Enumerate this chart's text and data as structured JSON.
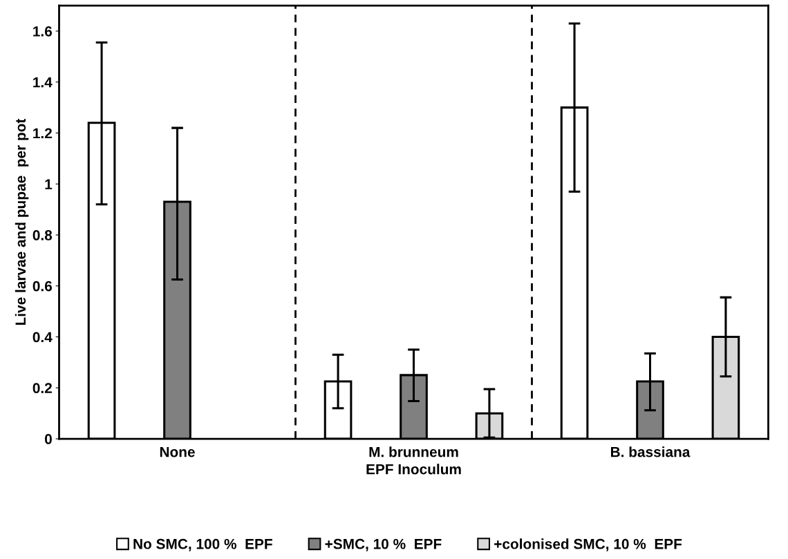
{
  "chart_data": {
    "type": "bar",
    "xlabel": "EPF Inoculum",
    "ylabel": "Live larvae and pupae  per pot",
    "categories": [
      "None",
      "M. brunneum",
      "B. bassiana"
    ],
    "series": [
      {
        "name": "No SMC, 100 %  EPF",
        "color": "#ffffff",
        "values": [
          1.24,
          0.225,
          1.3
        ],
        "errors": [
          [
            0.92,
            1.555
          ],
          [
            0.12,
            0.33
          ],
          [
            0.97,
            1.63
          ]
        ]
      },
      {
        "name": "+SMC, 10 %  EPF",
        "color": "#808080",
        "values": [
          0.93,
          0.25,
          0.225
        ],
        "errors": [
          [
            0.625,
            1.22
          ],
          [
            0.148,
            0.35
          ],
          [
            0.112,
            0.335
          ]
        ]
      },
      {
        "name": "+colonised SMC, 10 %  EPF",
        "color": "#d9d9d9",
        "values": [
          null,
          0.1,
          0.4
        ],
        "errors": [
          null,
          [
            0.005,
            0.195
          ],
          [
            0.245,
            0.555
          ]
        ]
      }
    ],
    "ylim": [
      0,
      1.7
    ],
    "yticks": [
      0,
      0.2,
      0.4,
      0.6,
      0.8,
      1,
      1.2,
      1.4,
      1.6
    ],
    "grid": false,
    "legend": "bottom"
  }
}
